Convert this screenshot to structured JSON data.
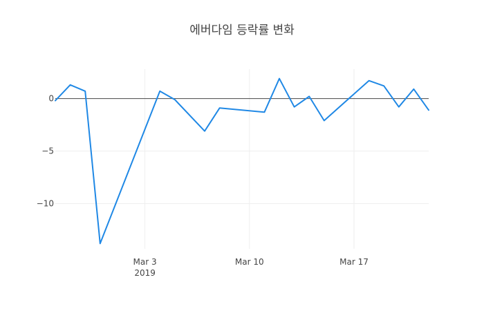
{
  "chart_data": {
    "type": "line",
    "title": "에버다임 등락률 변화",
    "xlabel": "",
    "ylabel": "",
    "x": [
      "2019-02-25",
      "2019-02-26",
      "2019-02-27",
      "2019-02-28",
      "2019-03-04",
      "2019-03-05",
      "2019-03-07",
      "2019-03-08",
      "2019-03-11",
      "2019-03-12",
      "2019-03-13",
      "2019-03-14",
      "2019-03-15",
      "2019-03-18",
      "2019-03-19",
      "2019-03-20",
      "2019-03-21",
      "2019-03-22"
    ],
    "series": [
      {
        "color": "#1f88e5",
        "values": [
          -0.2,
          1.3,
          0.7,
          -13.8,
          0.7,
          -0.1,
          -3.1,
          -0.9,
          -1.3,
          1.9,
          -0.8,
          0.2,
          -2.1,
          1.7,
          1.2,
          -0.8,
          0.9,
          -1.1
        ]
      }
    ],
    "xlim": [
      "2019-02-25",
      "2019-03-22"
    ],
    "ylim": [
      -14.3,
      2.8
    ],
    "xticks": [
      {
        "date": "2019-03-03",
        "label": "Mar 3",
        "sublabel": "2019"
      },
      {
        "date": "2019-03-10",
        "label": "Mar 10",
        "sublabel": ""
      },
      {
        "date": "2019-03-17",
        "label": "Mar 17",
        "sublabel": ""
      }
    ],
    "yticks": [
      {
        "value": 0,
        "label": "0"
      },
      {
        "value": -5,
        "label": "−5"
      },
      {
        "value": -10,
        "label": "−10"
      }
    ],
    "grid": true,
    "zero_line_color": "#444444",
    "grid_color": "#eeeeee"
  }
}
